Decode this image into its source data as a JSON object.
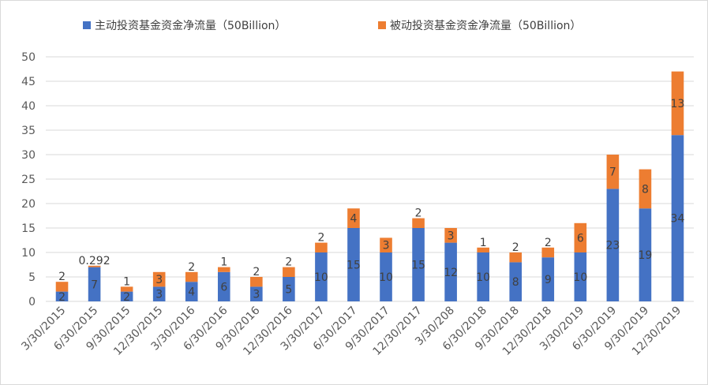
{
  "chart_data": {
    "type": "bar",
    "stacked": true,
    "title": "",
    "xlabel": "",
    "ylabel": "",
    "ylim": [
      0,
      50
    ],
    "yticks": [
      0,
      5,
      10,
      15,
      20,
      25,
      30,
      35,
      40,
      45,
      50
    ],
    "grid": true,
    "legend_position": "top",
    "categories": [
      "3/30/2015",
      "6/30/2015",
      "9/30/2015",
      "12/30/2015",
      "3/30/2016",
      "6/30/2016",
      "9/30/2016",
      "12/30/2016",
      "3/30/2017",
      "6/30/2017",
      "9/30/2017",
      "12/30/2017",
      "3/30/208",
      "6/30/2018",
      "9/30/2018",
      "12/30/2018",
      "3/30/2019",
      "6/30/2019",
      "9/30/2019",
      "12/30/2019"
    ],
    "series": [
      {
        "name": "主动投资基金资金净流量（50Billion）",
        "color": "#4472c4",
        "values": [
          2,
          7,
          2,
          3,
          4,
          6,
          3,
          5,
          10,
          15,
          10,
          15,
          12,
          10,
          8,
          9,
          10,
          23,
          19,
          34
        ],
        "labels": [
          "2",
          "7",
          "2",
          "3",
          "4",
          "6",
          "3",
          "5",
          "10",
          "15",
          "10",
          "15",
          "12",
          "10",
          "8",
          "9",
          "10",
          "23",
          "19",
          "34"
        ]
      },
      {
        "name": "被动投资基金资金净流量（50Billion）",
        "color": "#ed7d31",
        "values": [
          2,
          0.292,
          1,
          3,
          2,
          1,
          2,
          2,
          2,
          4,
          3,
          2,
          3,
          1,
          2,
          2,
          6,
          7,
          8,
          13
        ],
        "labels": [
          "2",
          "0.292",
          "1",
          "3",
          "2",
          "1",
          "2",
          "2",
          "2",
          "4",
          "3",
          "2",
          "3",
          "1",
          "2",
          "2",
          "6",
          "7",
          "8",
          "13"
        ]
      }
    ]
  }
}
